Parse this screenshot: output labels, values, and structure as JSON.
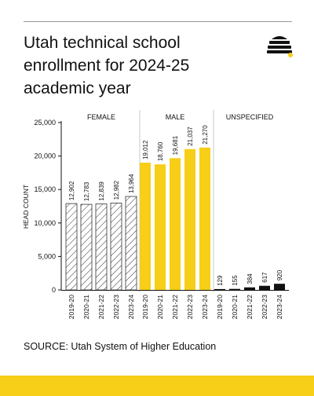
{
  "title": "Utah technical school enrollment for 2024-25 academic year",
  "source": "SOURCE: Utah System of Higher Education",
  "colors": {
    "accent": "#f7ce18",
    "male_bar": "#f7ce18",
    "unspecified_bar": "#111111",
    "female_hatch": "#333333",
    "panel_divider": "#c8c8c8",
    "text": "#111111"
  },
  "icons": {
    "logo": "beehive-icon"
  },
  "chart_data": {
    "type": "bar",
    "title": "",
    "ylabel": "HEAD COUNT",
    "xlabel": "",
    "ylim": [
      0,
      25000
    ],
    "yticks": [
      0,
      5000,
      10000,
      15000,
      20000,
      25000
    ],
    "ytick_labels": [
      "0",
      "5,000",
      "10,000",
      "15,000",
      "20,000",
      "25,000"
    ],
    "grid": false,
    "panels": [
      {
        "name": "FEMALE",
        "style": "hatched",
        "categories": [
          "2019-20",
          "2020-21",
          "2021-22",
          "2022-23",
          "2023-24"
        ],
        "values": [
          12902,
          12783,
          12839,
          12982,
          13964
        ],
        "labels": [
          "12,902",
          "12,783",
          "12,839",
          "12,982",
          "13,964"
        ]
      },
      {
        "name": "MALE",
        "style": "yellow",
        "categories": [
          "2019-20",
          "2020-21",
          "2021-22",
          "2022-23",
          "2023-24"
        ],
        "values": [
          19012,
          18760,
          19681,
          21037,
          21270
        ],
        "labels": [
          "19,012",
          "18,760",
          "19,681",
          "21,037",
          "21,270"
        ]
      },
      {
        "name": "UNSPECIFIED",
        "style": "black",
        "categories": [
          "2019-20",
          "2020-21",
          "2021-22",
          "2022-23",
          "2023-24"
        ],
        "values": [
          129,
          155,
          384,
          617,
          920
        ],
        "labels": [
          "129",
          "155",
          "384",
          "617",
          "920"
        ]
      }
    ]
  }
}
